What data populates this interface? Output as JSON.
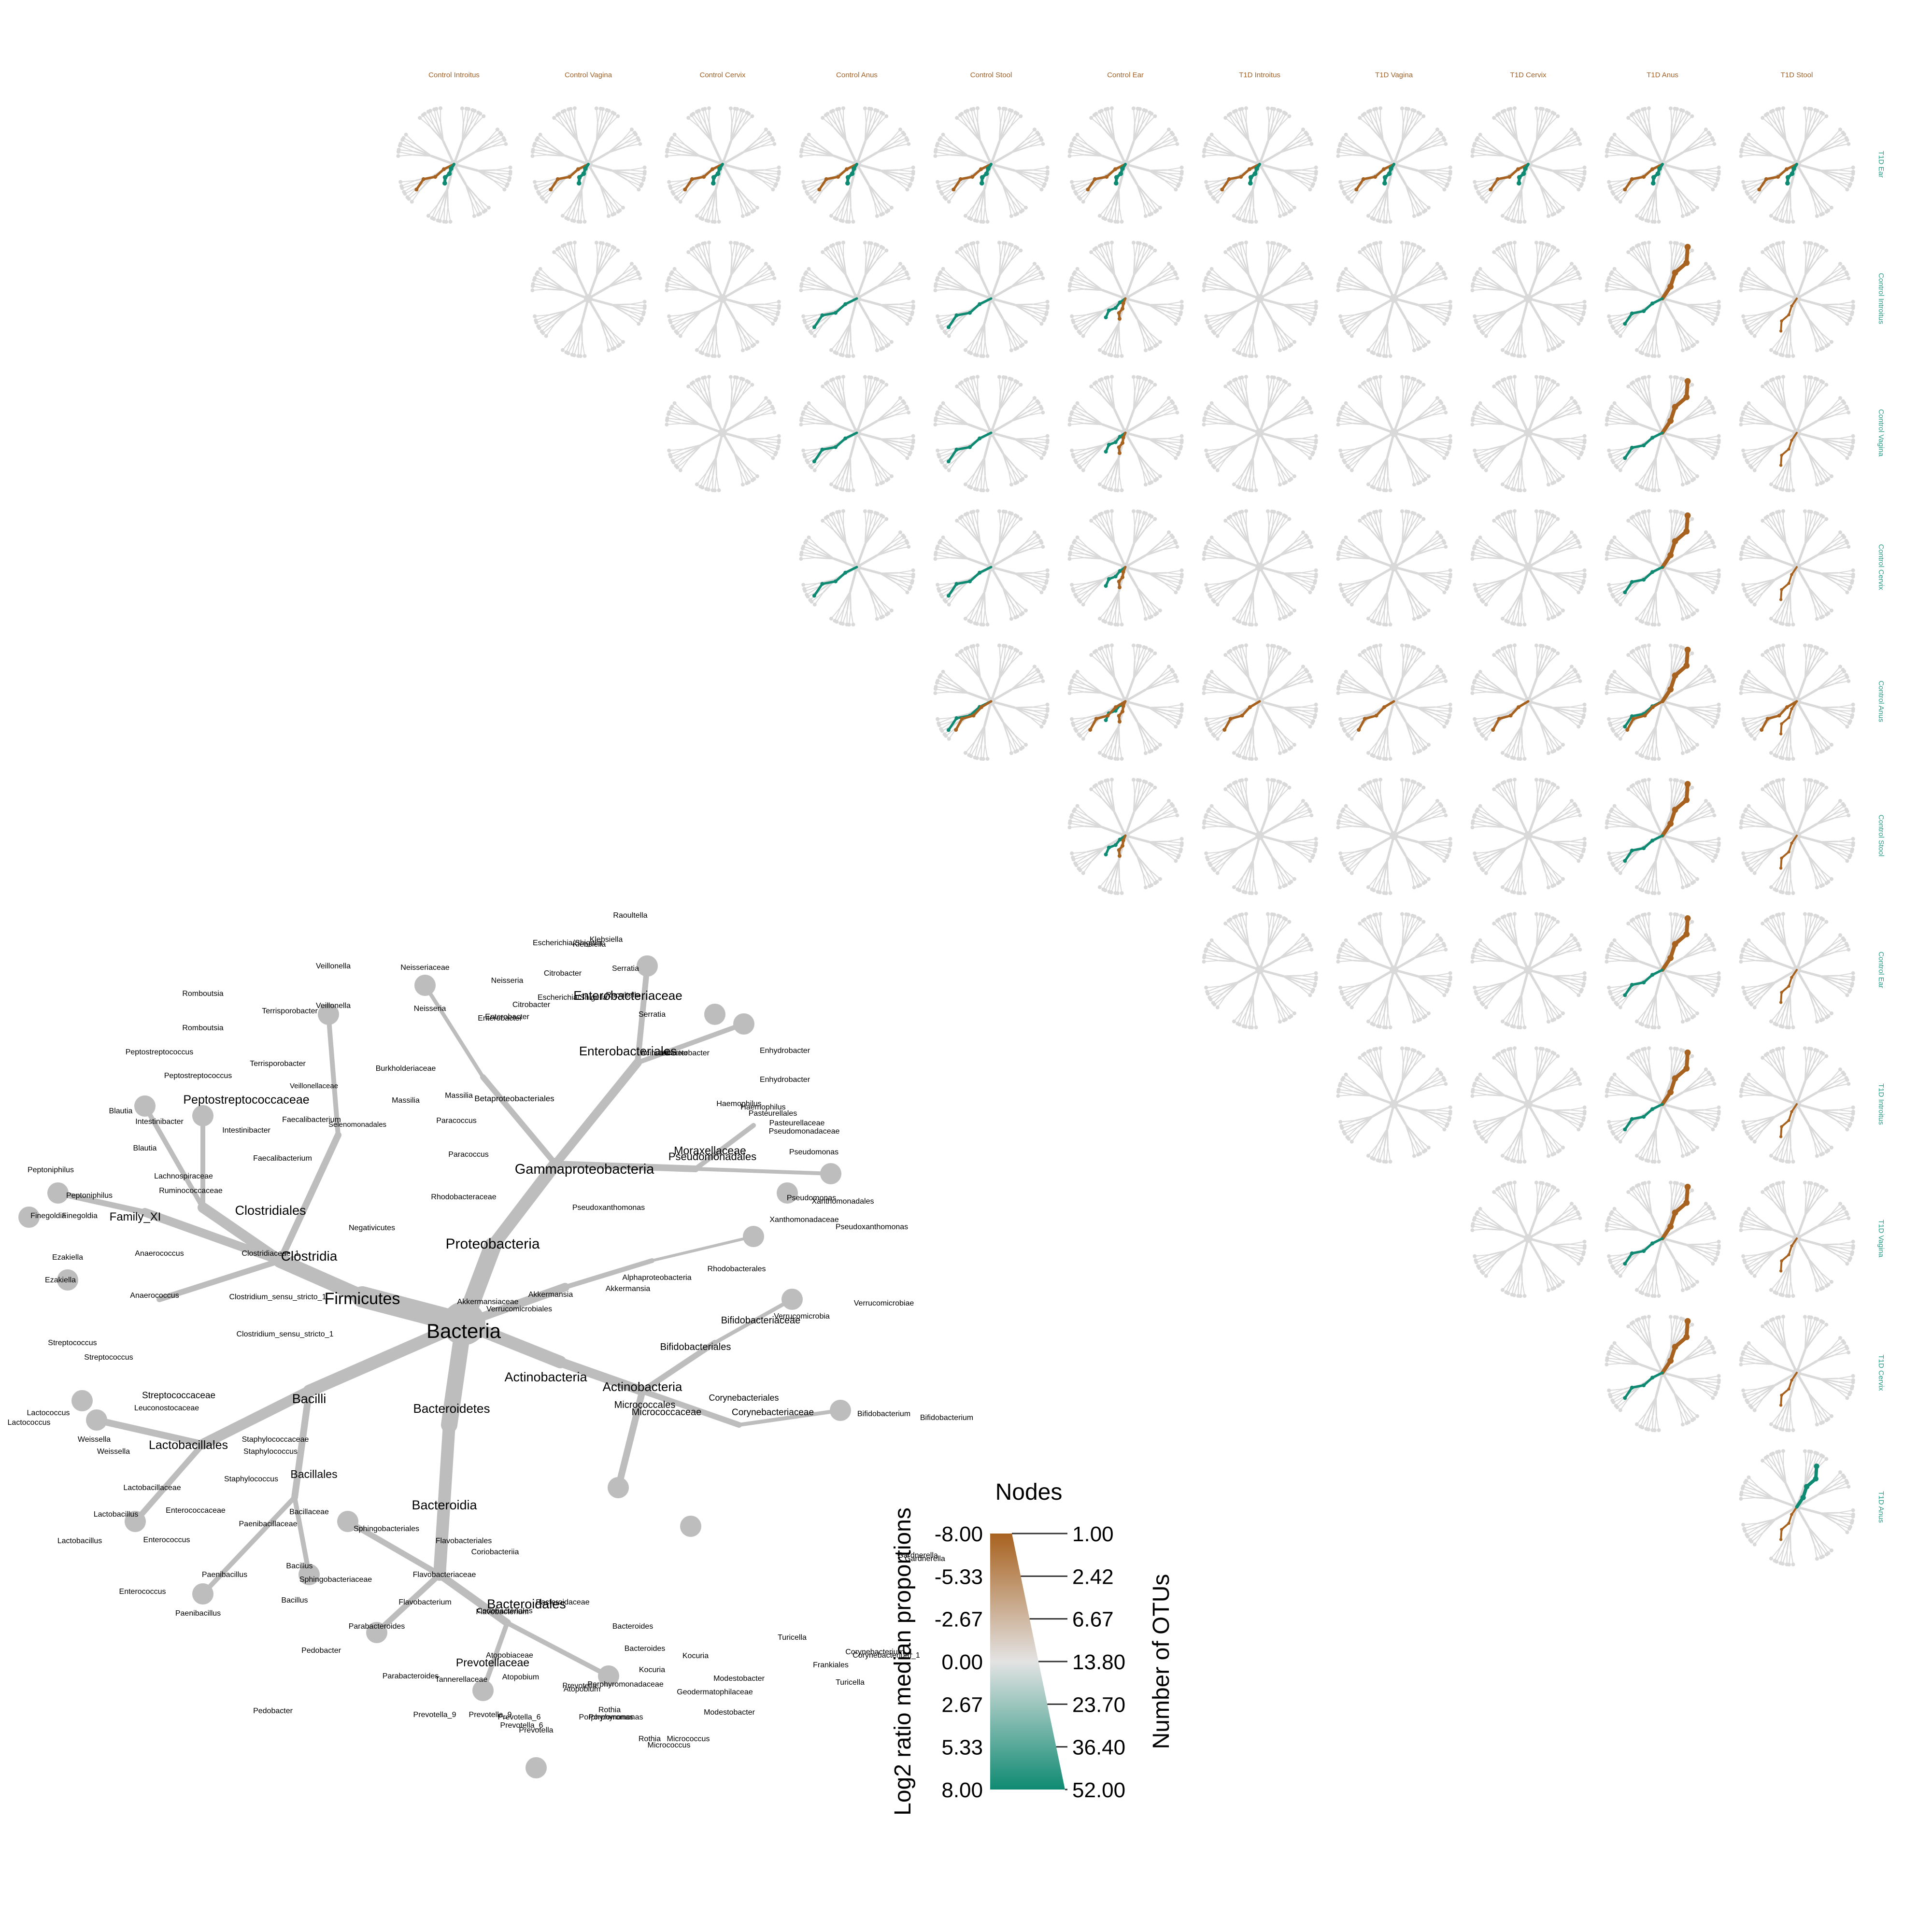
{
  "col_labels": [
    "Control Introitus",
    "Control Vagina",
    "Control Cervix",
    "Control Anus",
    "Control Stool",
    "Control Ear",
    "T1D Introitus",
    "T1D Vagina",
    "T1D Cervix",
    "T1D Anus",
    "T1D Stool"
  ],
  "row_labels": [
    "T1D Ear",
    "Control Introitus",
    "Control Vagina",
    "Control Cervix",
    "Control Anus",
    "Control Stool",
    "Control Ear",
    "T1D Introitus",
    "T1D Vagina",
    "T1D Cervix",
    "T1D Anus"
  ],
  "colors": {
    "gray_tree": "#d9d9d9",
    "key_tree": "#bdbdbd",
    "brown": "#a8621f",
    "teal": "#0f8a72",
    "light_teal": "#a6d2c8",
    "tan": "#d2b499"
  },
  "key_tree": {
    "root": "Bacteria",
    "labels": [
      [
        "Bacteria",
        42
      ],
      [
        "Firmicutes",
        34
      ],
      [
        "Proteobacteria",
        30
      ],
      [
        "Clostridia",
        28
      ],
      [
        "Bacilli",
        27
      ],
      [
        "Bacteroidia",
        27
      ],
      [
        "Clostridiales",
        27
      ],
      [
        "Gammaproteobacteria",
        29
      ],
      [
        "Actinobacteria",
        27
      ],
      [
        "Actinobacteria",
        26
      ],
      [
        "Bacteroidetes",
        26
      ],
      [
        "Bacteroidales",
        27
      ],
      [
        "Enterobacteriaceae",
        26
      ],
      [
        "Enterobacteriales",
        26
      ],
      [
        "Peptostreptococcaceae",
        25
      ],
      [
        "Lactobacillales",
        25
      ],
      [
        "Bacillales",
        23
      ],
      [
        "Prevotellaceae",
        23
      ],
      [
        "Family_XI",
        24
      ],
      [
        "Moraxellaceae",
        23
      ],
      [
        "Pseudomonadales",
        22
      ],
      [
        "Bifidobacteriales",
        20
      ],
      [
        "Micrococcales",
        20
      ],
      [
        "Micrococcaceae",
        20
      ],
      [
        "Streptococcaceae",
        19
      ],
      [
        "Bifidobacteriaceae",
        20
      ],
      [
        "Corynebacteriales",
        18
      ],
      [
        "Corynebacteriaceae",
        19
      ],
      [
        "Betaproteobacteriales",
        17
      ],
      [
        "Veillonella",
        16
      ],
      [
        "Veillonella",
        16
      ],
      [
        "Veillonellaceae",
        15
      ],
      [
        "Selenomonadales",
        15
      ],
      [
        "Negativicutes",
        16
      ],
      [
        "Romboutsia",
        16
      ],
      [
        "Romboutsia",
        16
      ],
      [
        "Terrisporobacter",
        16
      ],
      [
        "Terrisporobacter",
        16
      ],
      [
        "Peptostreptococcus",
        16
      ],
      [
        "Peptostreptococcus",
        16
      ],
      [
        "Blautia",
        16
      ],
      [
        "Blautia",
        16
      ],
      [
        "Intestinibacter",
        16
      ],
      [
        "Intestinibacter",
        16
      ],
      [
        "Faecalibacterium",
        16
      ],
      [
        "Faecalibacterium",
        16
      ],
      [
        "Lachnospiraceae",
        16
      ],
      [
        "Ruminococcaceae",
        16
      ],
      [
        "Peptoniphilus",
        16
      ],
      [
        "Peptoniphilus",
        16
      ],
      [
        "Finegoldia",
        16
      ],
      [
        "Finegoldia",
        16
      ],
      [
        "Ezakiella",
        16
      ],
      [
        "Ezakiella",
        16
      ],
      [
        "Anaerococcus",
        16
      ],
      [
        "Anaerococcus",
        16
      ],
      [
        "Clostridiaceae_1",
        16
      ],
      [
        "Clostridium_sensu_stricto_1",
        16
      ],
      [
        "Clostridium_sensu_stricto_1",
        16
      ],
      [
        "Streptococcus",
        16
      ],
      [
        "Streptococcus",
        16
      ],
      [
        "Lactococcus",
        16
      ],
      [
        "Lactococcus",
        16
      ],
      [
        "Leuconostocaceae",
        16
      ],
      [
        "Weissella",
        16
      ],
      [
        "Weissella",
        16
      ],
      [
        "Staphylococcaceae",
        16
      ],
      [
        "Staphylococcus",
        16
      ],
      [
        "Staphylococcus",
        16
      ],
      [
        "Lactobacillaceae",
        16
      ],
      [
        "Lactobacillus",
        16
      ],
      [
        "Lactobacillus",
        16
      ],
      [
        "Enterococcaceae",
        16
      ],
      [
        "Enterococcus",
        16
      ],
      [
        "Enterococcus",
        16
      ],
      [
        "Paenibacillaceae",
        16
      ],
      [
        "Paenibacillus",
        16
      ],
      [
        "Paenibacillus",
        16
      ],
      [
        "Bacillaceae",
        16
      ],
      [
        "Bacillus",
        16
      ],
      [
        "Bacillus",
        16
      ],
      [
        "Sphingobacteriales",
        16
      ],
      [
        "Sphingobacteriaceae",
        16
      ],
      [
        "Pedobacter",
        16
      ],
      [
        "Pedobacter",
        16
      ],
      [
        "Flavobacteriales",
        16
      ],
      [
        "Flavobacteriaceae",
        16
      ],
      [
        "Flavobacterium",
        16
      ],
      [
        "Flavobacterium",
        16
      ],
      [
        "Tannerellaceae",
        16
      ],
      [
        "Parabacteroides",
        16
      ],
      [
        "Parabacteroides",
        16
      ],
      [
        "Prevotella_9",
        16
      ],
      [
        "Prevotella_9",
        16
      ],
      [
        "Prevotella_6",
        16
      ],
      [
        "Prevotella_6",
        16
      ],
      [
        "Prevotella",
        16
      ],
      [
        "Prevotella",
        16
      ],
      [
        "Porphyromonadaceae",
        16
      ],
      [
        "Porphyromonas",
        16
      ],
      [
        "Porphyromonas",
        16
      ],
      [
        "Bacteroidaceae",
        16
      ],
      [
        "Bacteroides",
        16
      ],
      [
        "Bacteroides",
        16
      ],
      [
        "Coriobacteriia",
        16
      ],
      [
        "Coriobacteriales",
        16
      ],
      [
        "Atopobiaceae",
        16
      ],
      [
        "Atopobium",
        16
      ],
      [
        "Atopobium",
        16
      ],
      [
        "Rothia",
        16
      ],
      [
        "Rothia",
        16
      ],
      [
        "Micrococcus",
        16
      ],
      [
        "Micrococcus",
        16
      ],
      [
        "Kocuria",
        16
      ],
      [
        "Kocuria",
        16
      ],
      [
        "Geodermatophilaceae",
        16
      ],
      [
        "Modestobacter",
        16
      ],
      [
        "Modestobacter",
        16
      ],
      [
        "Frankiales",
        16
      ],
      [
        "Turicella",
        16
      ],
      [
        "Turicella",
        16
      ],
      [
        "Corynebacterium_1",
        16
      ],
      [
        "Corynebacterium_1",
        16
      ],
      [
        "Gardnerella",
        16
      ],
      [
        "Gardnerella",
        16
      ],
      [
        "Bifidobacterium",
        16
      ],
      [
        "Bifidobacterium",
        16
      ],
      [
        "Verrucomicrobia",
        16
      ],
      [
        "Verrucomicrobiae",
        16
      ],
      [
        "Verrucomicrobiales",
        16
      ],
      [
        "Akkermansiaceae",
        16
      ],
      [
        "Akkermansia",
        16
      ],
      [
        "Akkermansia",
        16
      ],
      [
        "Alphaproteobacteria",
        16
      ],
      [
        "Rhodobacterales",
        16
      ],
      [
        "Rhodobacteraceae",
        16
      ],
      [
        "Paracoccus",
        16
      ],
      [
        "Paracoccus",
        16
      ],
      [
        "Burkholderiaceae",
        16
      ],
      [
        "Massilia",
        16
      ],
      [
        "Massilia",
        16
      ],
      [
        "Neisseriaceae",
        16
      ],
      [
        "Neisseria",
        16
      ],
      [
        "Neisseria",
        16
      ],
      [
        "Enterobacter",
        16
      ],
      [
        "Enterobacter",
        16
      ],
      [
        "Citrobacter",
        16
      ],
      [
        "Citrobacter",
        16
      ],
      [
        "Escherichia/Shigella",
        16
      ],
      [
        "Escherichia/Shigella",
        16
      ],
      [
        "Klebsiella",
        16
      ],
      [
        "Klebsiella",
        16
      ],
      [
        "Raoultella",
        16
      ],
      [
        "Raoultella",
        16
      ],
      [
        "Serratia",
        16
      ],
      [
        "Serratia",
        16
      ],
      [
        "Acinetobacter",
        16
      ],
      [
        "Acinetobacter",
        16
      ],
      [
        "Enhydrobacter",
        16
      ],
      [
        "Enhydrobacter",
        16
      ],
      [
        "Pasteurellales",
        16
      ],
      [
        "Pasteurellaceae",
        16
      ],
      [
        "Haemophilus",
        16
      ],
      [
        "Haemophilus",
        16
      ],
      [
        "Pseudomonadaceae",
        16
      ],
      [
        "Pseudomonas",
        16
      ],
      [
        "Pseudomonas",
        16
      ],
      [
        "Xanthomonadales",
        16
      ],
      [
        "Xanthomonadaceae",
        16
      ],
      [
        "Pseudoxanthomonas",
        16
      ],
      [
        "Pseudoxanthomonas",
        16
      ]
    ]
  },
  "legend": {
    "nodes_title": "Nodes",
    "color_axis_title": "Log2 ratio median proportions",
    "size_axis_title": "Number of OTUs",
    "color_ticks": [
      "-8.00",
      "-5.33",
      "-2.67",
      "0.00",
      "2.67",
      "5.33",
      "8.00"
    ],
    "size_ticks": [
      "1.00",
      "2.42",
      "6.67",
      "13.80",
      "23.70",
      "36.40",
      "52.00"
    ]
  }
}
